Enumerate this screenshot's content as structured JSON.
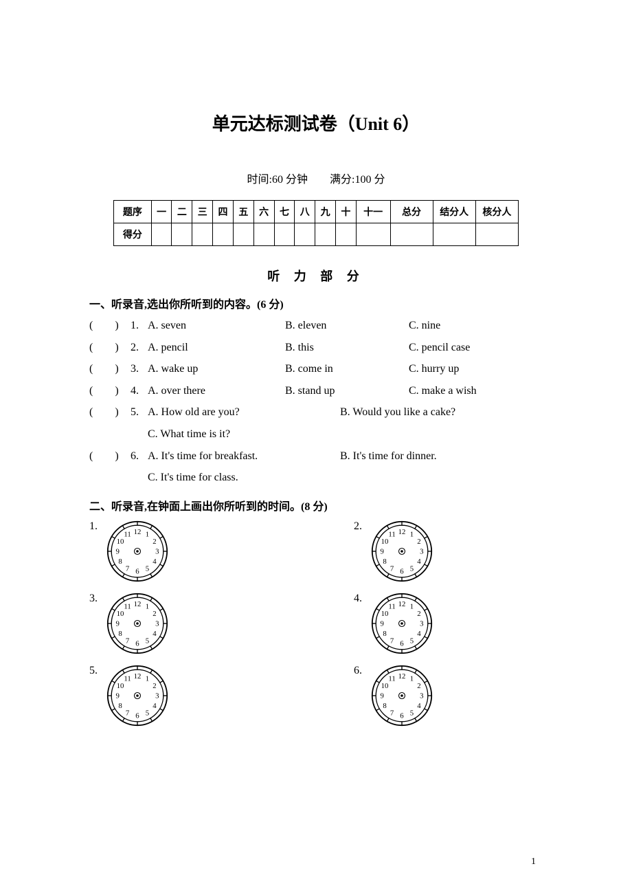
{
  "title": "单元达标测试卷（Unit 6）",
  "time_info": "时间:60 分钟　　满分:100 分",
  "score_table": {
    "header_row": [
      "题序",
      "一",
      "二",
      "三",
      "四",
      "五",
      "六",
      "七",
      "八",
      "九",
      "十",
      "十一",
      "总分",
      "结分人",
      "核分人"
    ],
    "score_label": "得分"
  },
  "listening_header": "听 力 部 分",
  "section1": {
    "instruction": "一、听录音,选出你所听到的内容。(6 分)",
    "questions": [
      {
        "num": "1.",
        "a": "A. seven",
        "b": "B. eleven",
        "c": "C. nine"
      },
      {
        "num": "2.",
        "a": "A. pencil",
        "b": "B. this",
        "c": "C. pencil case"
      },
      {
        "num": "3.",
        "a": "A. wake up",
        "b": "B. come in",
        "c": "C. hurry up"
      },
      {
        "num": "4.",
        "a": "A. over there",
        "b": "B. stand up",
        "c": "C. make a wish"
      },
      {
        "num": "5.",
        "a": "A. How old are you?",
        "b": "B. Would you like a cake?",
        "c": "C. What time is it?"
      },
      {
        "num": "6.",
        "a": "A. It's time for breakfast.",
        "b": "B. It's time for dinner.",
        "c": "C. It's time for class."
      }
    ]
  },
  "section2": {
    "instruction": "二、听录音,在钟面上画出你所听到的时间。(8 分)",
    "clocks": [
      "1.",
      "2.",
      "3.",
      "4.",
      "5.",
      "6."
    ]
  },
  "clock_style": {
    "outer_stroke": "#000000",
    "face_fill": "#ffffff",
    "size": 90
  },
  "page_number": "1"
}
